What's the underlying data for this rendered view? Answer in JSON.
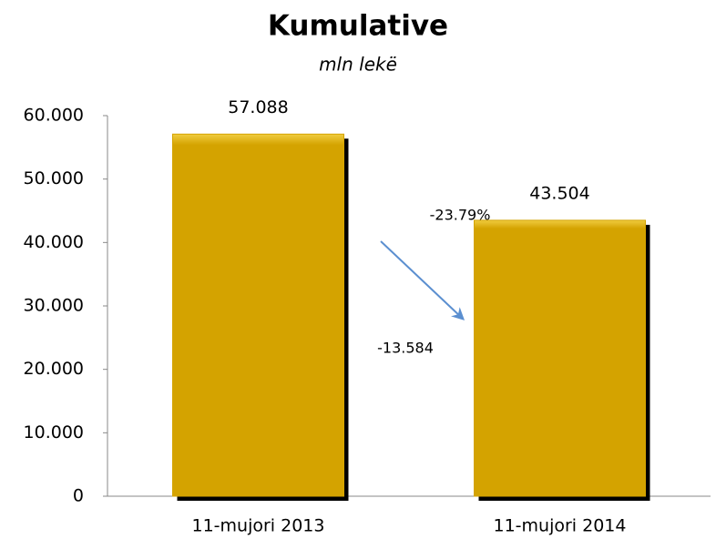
{
  "chart_data": {
    "type": "bar",
    "title": "Kumulative",
    "subtitle": "mln lekë",
    "categories": [
      "11-mujori 2013",
      "11-mujori 2014"
    ],
    "values": [
      57088,
      43504
    ],
    "value_labels": [
      "57.088",
      "43.504"
    ],
    "color": "#d4a300",
    "ylim": [
      0,
      60000
    ],
    "yticks": [
      0,
      {
        "value": 10000,
        "label": "10.000"
      },
      {
        "value": 20000,
        "label": "20.000"
      },
      {
        "value": 30000,
        "label": "30.000"
      },
      {
        "value": 40000,
        "label": "40.000"
      },
      {
        "value": 50000,
        "label": "50.000"
      },
      {
        "value": 60000,
        "label": "60.000"
      }
    ],
    "grid": false,
    "annotations": [
      "-23.79%",
      "-13.584"
    ]
  }
}
